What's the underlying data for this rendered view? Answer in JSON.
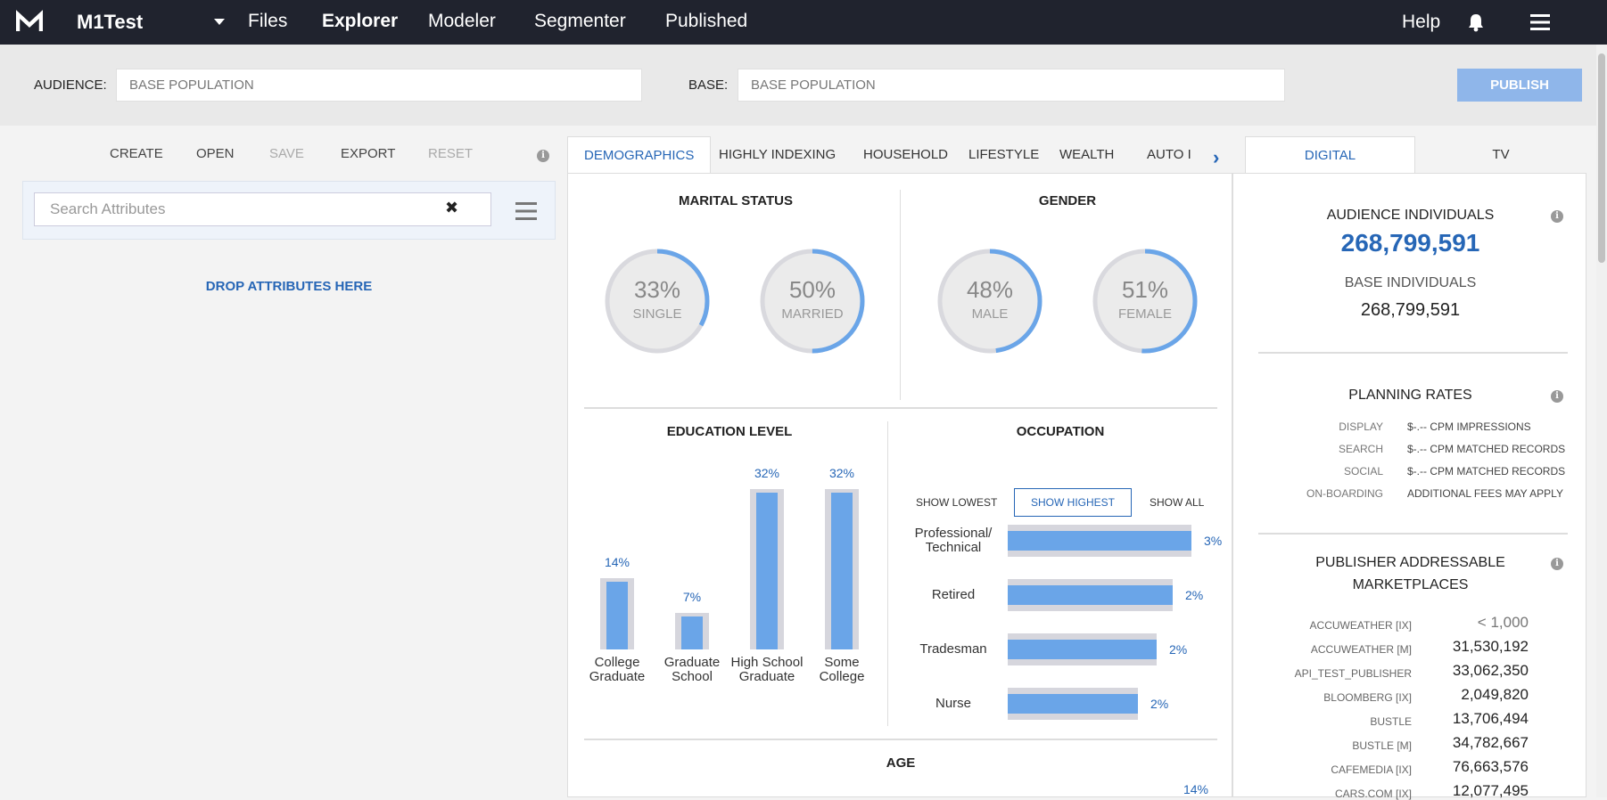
{
  "header": {
    "app_name": "M1Test",
    "nav": [
      "Files",
      "Explorer",
      "Modeler",
      "Segmenter",
      "Published"
    ],
    "active_nav": "Explorer",
    "help": "Help"
  },
  "audience_bar": {
    "audience_label": "AUDIENCE:",
    "audience_value": "BASE POPULATION",
    "base_label": "BASE:",
    "base_value": "BASE POPULATION",
    "publish": "PUBLISH"
  },
  "left": {
    "toolbar": [
      "CREATE",
      "OPEN",
      "SAVE",
      "EXPORT",
      "RESET"
    ],
    "search_placeholder": "Search Attributes",
    "drop_text": "DROP ATTRIBUTES HERE"
  },
  "tabs": [
    "DEMOGRAPHICS",
    "HIGHLY INDEXING",
    "HOUSEHOLD",
    "LIFESTYLE",
    "WEALTH",
    "AUTO I"
  ],
  "demographics": {
    "marital": {
      "title": "MARITAL STATUS",
      "items": [
        {
          "pct": "33%",
          "label": "SINGLE",
          "value": 0.33
        },
        {
          "pct": "50%",
          "label": "MARRIED",
          "value": 0.5
        }
      ]
    },
    "gender": {
      "title": "GENDER",
      "items": [
        {
          "pct": "48%",
          "label": "MALE",
          "value": 0.48
        },
        {
          "pct": "51%",
          "label": "FEMALE",
          "value": 0.51
        }
      ]
    },
    "education": {
      "title": "EDUCATION LEVEL",
      "items": [
        {
          "pct": "14%",
          "label": "College Graduate",
          "value": 14
        },
        {
          "pct": "7%",
          "label": "Graduate School",
          "value": 7
        },
        {
          "pct": "32%",
          "label": "High School Graduate",
          "value": 32
        },
        {
          "pct": "32%",
          "label": "Some College",
          "value": 32
        }
      ]
    },
    "occupation": {
      "title": "OCCUPATION",
      "toggles": [
        "SHOW LOWEST",
        "SHOW HIGHEST",
        "SHOW ALL"
      ],
      "items": [
        {
          "label": "Professional/ Technical",
          "pct": "3%",
          "value": 1.0
        },
        {
          "label": "Retired",
          "pct": "2%",
          "value": 0.9
        },
        {
          "label": "Tradesman",
          "pct": "2%",
          "value": 0.81
        },
        {
          "label": "Nurse",
          "pct": "2%",
          "value": 0.71
        }
      ]
    },
    "age": {
      "title": "AGE",
      "first_pct": "14%"
    }
  },
  "right": {
    "tabs": [
      "DIGITAL",
      "TV"
    ],
    "audience_label": "AUDIENCE INDIVIDUALS",
    "audience_value": "268,799,591",
    "base_label": "BASE INDIVIDUALS",
    "base_value": "268,799,591",
    "rates_title": "PLANNING RATES",
    "rates": [
      {
        "k": "DISPLAY",
        "v": "$-.-- CPM IMPRESSIONS"
      },
      {
        "k": "SEARCH",
        "v": "$-.-- CPM MATCHED RECORDS"
      },
      {
        "k": "SOCIAL",
        "v": "$-.-- CPM MATCHED RECORDS"
      },
      {
        "k": "ON-BOARDING",
        "v": "ADDITIONAL FEES MAY APPLY"
      }
    ],
    "pub_title_1": "PUBLISHER ADDRESSABLE",
    "pub_title_2": "MARKETPLACES",
    "publishers": [
      {
        "k": "ACCUWEATHER [IX]",
        "v": "< 1,000"
      },
      {
        "k": "ACCUWEATHER [M]",
        "v": "31,530,192"
      },
      {
        "k": "API_TEST_PUBLISHER",
        "v": "33,062,350"
      },
      {
        "k": "BLOOMBERG [IX]",
        "v": "2,049,820"
      },
      {
        "k": "BUSTLE",
        "v": "13,706,494"
      },
      {
        "k": "BUSTLE [M]",
        "v": "34,782,667"
      },
      {
        "k": "CAFEMEDIA [IX]",
        "v": "76,663,576"
      },
      {
        "k": "CARS.COM [IX]",
        "v": "12,077,495"
      }
    ]
  },
  "colors": {
    "topbar": "#20232e",
    "accent": "#2666b6",
    "bar": "#6aa5e8",
    "publish": "#8fb6ea"
  }
}
